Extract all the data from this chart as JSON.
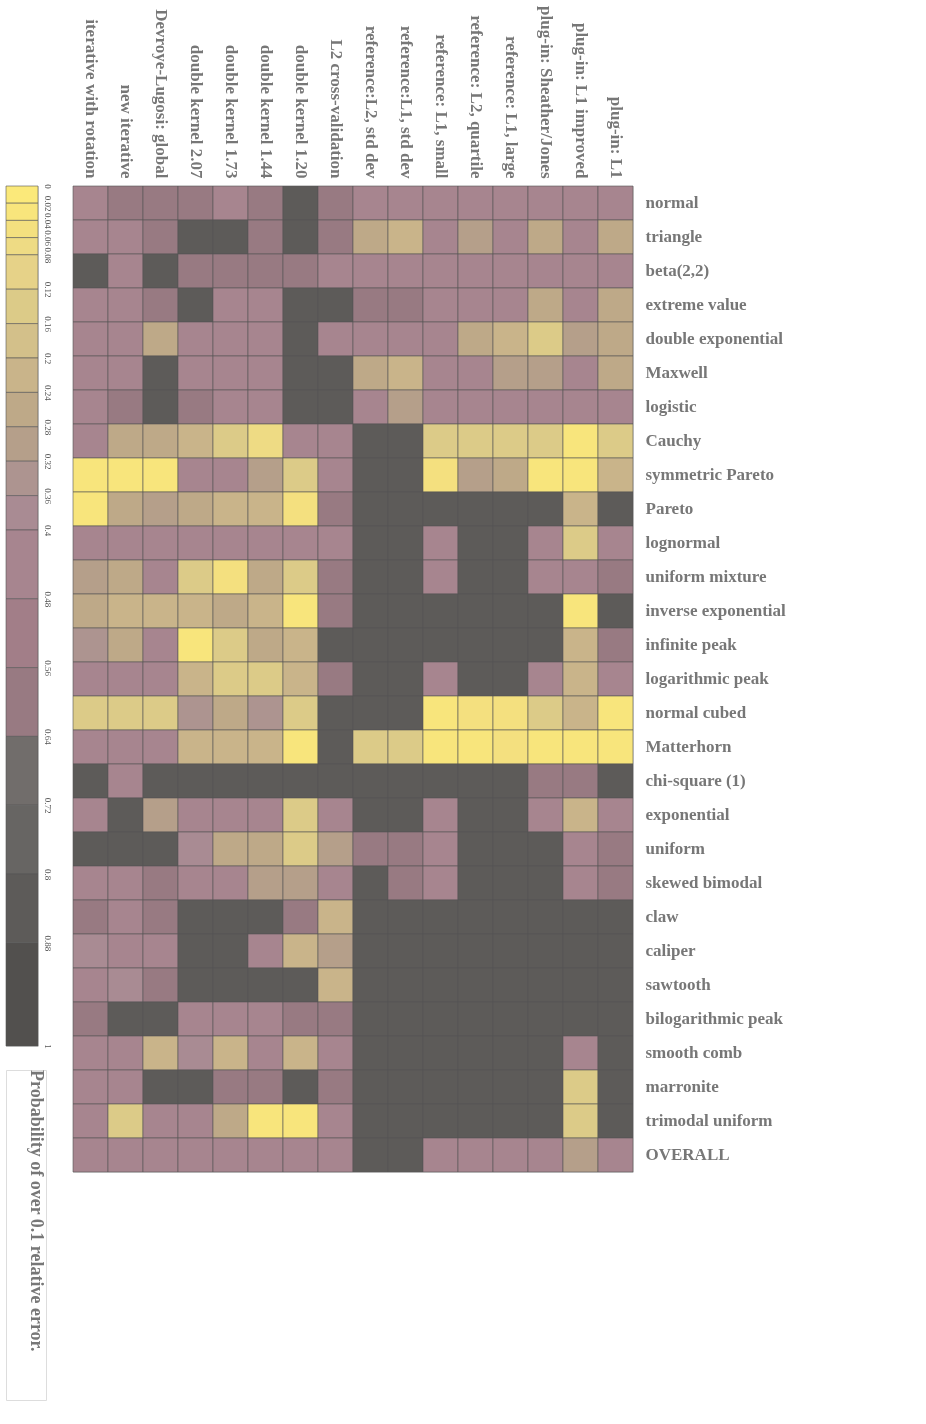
{
  "chart_data": {
    "type": "heatmap",
    "categories": [
      "iterative with rotation",
      "new iterative",
      "Devroye-Lugosi: global",
      "double kernel 2.07",
      "double kernel 1.73",
      "double kernel 1.44",
      "double kernel 1.20",
      "L2 cross-validation",
      "reference:L2, std dev",
      "reference:L1, std dev",
      "reference: L1, small",
      "reference: L2, quartile",
      "reference: L1, large",
      "plug-in: Sheather/Jones",
      "plug-in: L1 improved",
      "plug-in: L1"
    ],
    "y_categories": [
      "normal",
      "triangle",
      "beta(2,2)",
      "extreme value",
      "double exponential",
      "Maxwell",
      "logistic",
      "Cauchy",
      "symmetric Pareto",
      "Pareto",
      "lognormal",
      "uniform mixture",
      "inverse exponential",
      "infinite peak",
      "logarithmic peak",
      "normal cubed",
      "Matterhorn",
      "chi-square (1)",
      "exponential",
      "uniform",
      "skewed bimodal",
      "claw",
      "caliper",
      "sawtooth",
      "bilogarithmic peak",
      "smooth comb",
      "marronite",
      "trimodal uniform",
      "OVERALL"
    ],
    "cells": [
      [
        0.44,
        0.6,
        0.6,
        0.6,
        0.44,
        0.6,
        0.84,
        0.6,
        0.44,
        0.44,
        0.44,
        0.44,
        0.44,
        0.44,
        0.44,
        0.44
      ],
      [
        0.44,
        0.44,
        0.6,
        0.84,
        0.84,
        0.6,
        0.84,
        0.6,
        0.26,
        0.22,
        0.44,
        0.3,
        0.44,
        0.26,
        0.44,
        0.26
      ],
      [
        0.84,
        0.44,
        0.84,
        0.6,
        0.6,
        0.6,
        0.6,
        0.44,
        0.44,
        0.44,
        0.44,
        0.44,
        0.44,
        0.44,
        0.44,
        0.44
      ],
      [
        0.44,
        0.44,
        0.6,
        0.84,
        0.44,
        0.44,
        0.84,
        0.84,
        0.6,
        0.6,
        0.44,
        0.44,
        0.44,
        0.26,
        0.44,
        0.26
      ],
      [
        0.44,
        0.44,
        0.26,
        0.44,
        0.44,
        0.44,
        0.84,
        0.44,
        0.44,
        0.44,
        0.44,
        0.26,
        0.22,
        0.14,
        0.3,
        0.26
      ],
      [
        0.44,
        0.44,
        0.84,
        0.44,
        0.44,
        0.44,
        0.84,
        0.84,
        0.26,
        0.22,
        0.44,
        0.44,
        0.3,
        0.3,
        0.44,
        0.26
      ],
      [
        0.44,
        0.6,
        0.84,
        0.6,
        0.44,
        0.44,
        0.84,
        0.84,
        0.44,
        0.3,
        0.44,
        0.44,
        0.44,
        0.44,
        0.44,
        0.44
      ],
      [
        0.44,
        0.26,
        0.26,
        0.22,
        0.14,
        0.07,
        0.44,
        0.44,
        0.84,
        0.84,
        0.14,
        0.14,
        0.14,
        0.14,
        0.03,
        0.14
      ],
      [
        0.03,
        0.03,
        0.03,
        0.44,
        0.44,
        0.3,
        0.14,
        0.44,
        0.84,
        0.84,
        0.05,
        0.3,
        0.26,
        0.03,
        0.03,
        0.22
      ],
      [
        0.03,
        0.26,
        0.3,
        0.26,
        0.22,
        0.22,
        0.05,
        0.6,
        0.84,
        0.84,
        0.84,
        0.84,
        0.84,
        0.84,
        0.22,
        0.84
      ],
      [
        0.44,
        0.44,
        0.44,
        0.44,
        0.44,
        0.44,
        0.44,
        0.44,
        0.84,
        0.84,
        0.44,
        0.84,
        0.84,
        0.44,
        0.14,
        0.44
      ],
      [
        0.3,
        0.26,
        0.44,
        0.14,
        0.05,
        0.26,
        0.14,
        0.6,
        0.84,
        0.84,
        0.44,
        0.84,
        0.84,
        0.44,
        0.44,
        0.6
      ],
      [
        0.26,
        0.22,
        0.22,
        0.22,
        0.26,
        0.22,
        0.03,
        0.6,
        0.84,
        0.84,
        0.84,
        0.84,
        0.84,
        0.84,
        0.03,
        0.84
      ],
      [
        0.34,
        0.26,
        0.44,
        0.03,
        0.14,
        0.26,
        0.22,
        0.84,
        0.84,
        0.84,
        0.84,
        0.84,
        0.84,
        0.84,
        0.22,
        0.6
      ],
      [
        0.44,
        0.44,
        0.44,
        0.22,
        0.14,
        0.14,
        0.22,
        0.6,
        0.84,
        0.84,
        0.44,
        0.84,
        0.84,
        0.44,
        0.22,
        0.44
      ],
      [
        0.14,
        0.14,
        0.14,
        0.34,
        0.26,
        0.34,
        0.14,
        0.84,
        0.84,
        0.84,
        0.03,
        0.05,
        0.05,
        0.14,
        0.22,
        0.03
      ],
      [
        0.44,
        0.44,
        0.44,
        0.22,
        0.22,
        0.22,
        0.03,
        0.84,
        0.14,
        0.14,
        0.03,
        0.03,
        0.05,
        0.03,
        0.03,
        0.03
      ],
      [
        0.84,
        0.44,
        0.84,
        0.84,
        0.84,
        0.84,
        0.84,
        0.84,
        0.84,
        0.84,
        0.84,
        0.84,
        0.84,
        0.6,
        0.6,
        0.84
      ],
      [
        0.44,
        0.84,
        0.3,
        0.44,
        0.44,
        0.44,
        0.14,
        0.44,
        0.84,
        0.84,
        0.44,
        0.84,
        0.84,
        0.44,
        0.22,
        0.44
      ],
      [
        0.84,
        0.84,
        0.84,
        0.38,
        0.26,
        0.26,
        0.14,
        0.3,
        0.6,
        0.6,
        0.44,
        0.84,
        0.84,
        0.84,
        0.44,
        0.6
      ],
      [
        0.44,
        0.44,
        0.6,
        0.44,
        0.44,
        0.3,
        0.3,
        0.44,
        0.84,
        0.6,
        0.44,
        0.84,
        0.84,
        0.84,
        0.44,
        0.6
      ],
      [
        0.6,
        0.44,
        0.6,
        0.84,
        0.84,
        0.84,
        0.6,
        0.22,
        0.84,
        0.84,
        0.84,
        0.84,
        0.84,
        0.84,
        0.84,
        0.84
      ],
      [
        0.38,
        0.44,
        0.44,
        0.84,
        0.84,
        0.44,
        0.22,
        0.3,
        0.84,
        0.84,
        0.84,
        0.84,
        0.84,
        0.84,
        0.84,
        0.84
      ],
      [
        0.44,
        0.38,
        0.6,
        0.84,
        0.84,
        0.84,
        0.84,
        0.22,
        0.84,
        0.84,
        0.84,
        0.84,
        0.84,
        0.84,
        0.84,
        0.84
      ],
      [
        0.6,
        0.84,
        0.84,
        0.44,
        0.44,
        0.44,
        0.6,
        0.6,
        0.84,
        0.84,
        0.84,
        0.84,
        0.84,
        0.84,
        0.84,
        0.84
      ],
      [
        0.44,
        0.44,
        0.22,
        0.38,
        0.22,
        0.44,
        0.22,
        0.44,
        0.84,
        0.84,
        0.84,
        0.84,
        0.84,
        0.84,
        0.44,
        0.84
      ],
      [
        0.44,
        0.44,
        0.84,
        0.84,
        0.6,
        0.6,
        0.84,
        0.6,
        0.84,
        0.84,
        0.84,
        0.84,
        0.84,
        0.84,
        0.14,
        0.84
      ],
      [
        0.44,
        0.14,
        0.44,
        0.44,
        0.26,
        0.03,
        0.03,
        0.44,
        0.84,
        0.84,
        0.84,
        0.84,
        0.84,
        0.84,
        0.14,
        0.84
      ],
      [
        0.44,
        0.44,
        0.44,
        0.44,
        0.44,
        0.44,
        0.44,
        0.44,
        0.84,
        0.84,
        0.44,
        0.44,
        0.44,
        0.44,
        0.3,
        0.44
      ]
    ],
    "clabel": "Probability of over 0.1 relative error.",
    "clim": [
      0,
      1.0
    ],
    "cticks": [
      0,
      0.02,
      0.04,
      0.06,
      0.08,
      0.12,
      0.16,
      0.2,
      0.24,
      0.28,
      0.32,
      0.36,
      0.4,
      0.48,
      0.56,
      0.64,
      0.72,
      0.8,
      0.88,
      1.0
    ],
    "colors": [
      "#fbe97a",
      "#f8e57c",
      "#f4e07f",
      "#eedb84",
      "#e6d288",
      "#dccb88",
      "#d3c08a",
      "#c9b48a",
      "#bea988",
      "#b59f8a",
      "#ad9490",
      "#a98b93",
      "#a7858f",
      "#a27e88",
      "#987a82",
      "#716d6b",
      "#676563",
      "#5d5b59",
      "#52504e"
    ]
  }
}
